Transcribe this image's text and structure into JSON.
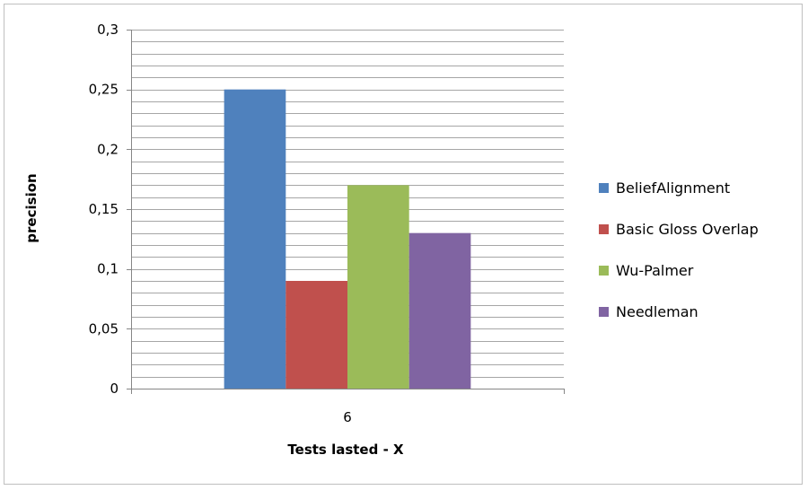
{
  "chart_data": {
    "type": "bar",
    "categories": [
      "6"
    ],
    "series": [
      {
        "name": "BeliefAlignment",
        "values": [
          0.25
        ],
        "color": "#4F81BD"
      },
      {
        "name": "Basic Gloss Overlap",
        "values": [
          0.09
        ],
        "color": "#C0504D"
      },
      {
        "name": "Wu-Palmer",
        "values": [
          0.17
        ],
        "color": "#9BBB59"
      },
      {
        "name": "Needleman",
        "values": [
          0.13
        ],
        "color": "#8064A2"
      }
    ],
    "xlabel": "Tests lasted - X",
    "ylabel": "precision",
    "ylim": [
      0,
      0.3
    ],
    "yticks": [
      0,
      0.05,
      0.1,
      0.15,
      0.2,
      0.25,
      0.3
    ],
    "ytick_labels": [
      "0",
      "0,05",
      "0,1",
      "0,15",
      "0,2",
      "0,25",
      "0,3"
    ],
    "grid": true,
    "legend_position": "right"
  }
}
